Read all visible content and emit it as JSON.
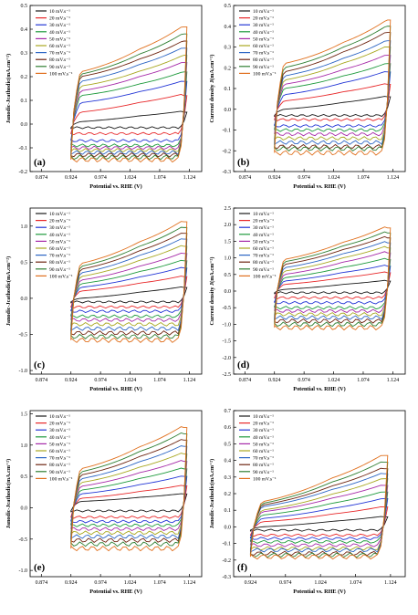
{
  "figure": {
    "legend_entries": [
      "10 mV.s⁻¹",
      "20 mV.s⁻¹",
      "30 mV.s⁻¹",
      "40 mV.s⁻¹",
      "50 mV.s⁻¹",
      "60 mV.s⁻¹",
      "70 mV.s⁻¹",
      "80 mV.s⁻¹",
      "90 mV.s⁻¹",
      "100 mV.s⁻¹"
    ],
    "colors": [
      "#1a1a1a",
      "#e8282a",
      "#2336d6",
      "#1e9a3c",
      "#a62aa8",
      "#a9a822",
      "#2c66c4",
      "#6e2410",
      "#2f7f32",
      "#e0701e"
    ]
  },
  "chart_data": [
    {
      "type": "line",
      "panel_label": "(a)",
      "xlabel": "Potential vs. RHE (V)",
      "ylabel": "Janodic-Jcathodic(mA.cm⁻²)",
      "x_ticks": [
        "0.874",
        "0.924",
        "0.974",
        "1.024",
        "1.074",
        "1.124"
      ],
      "y_ticks": [
        "-0.2",
        "-0.1",
        "0.0",
        "0.1",
        "0.2",
        "0.3",
        "0.4",
        "0.5"
      ],
      "xlim": [
        0.855,
        1.145
      ],
      "ylim": [
        -0.2,
        0.5
      ],
      "legend": "top-left",
      "x_range": [
        0.924,
        1.12
      ],
      "series": [
        {
          "name": "10 mV.s⁻¹",
          "values": {
            "lower": -0.015,
            "upper_start": 0.01,
            "upper_mid": 0.035,
            "upper_end": 0.05
          }
        },
        {
          "name": "20 mV.s⁻¹",
          "values": {
            "lower": -0.04,
            "upper_start": 0.05,
            "upper_mid": 0.09,
            "upper_end": 0.12
          }
        },
        {
          "name": "30 mV.s⁻¹",
          "values": {
            "lower": -0.07,
            "upper_start": 0.09,
            "upper_mid": 0.13,
            "upper_end": 0.18
          }
        },
        {
          "name": "40 mV.s⁻¹",
          "values": {
            "lower": -0.09,
            "upper_start": 0.12,
            "upper_mid": 0.16,
            "upper_end": 0.22
          }
        },
        {
          "name": "50 mV.s⁻¹",
          "values": {
            "lower": -0.1,
            "upper_start": 0.14,
            "upper_mid": 0.19,
            "upper_end": 0.26
          }
        },
        {
          "name": "60 mV.s⁻¹",
          "values": {
            "lower": -0.11,
            "upper_start": 0.16,
            "upper_mid": 0.21,
            "upper_end": 0.29
          }
        },
        {
          "name": "70 mV.s⁻¹",
          "values": {
            "lower": -0.12,
            "upper_start": 0.18,
            "upper_mid": 0.24,
            "upper_end": 0.32
          }
        },
        {
          "name": "80 mV.s⁻¹",
          "values": {
            "lower": -0.13,
            "upper_start": 0.2,
            "upper_mid": 0.26,
            "upper_end": 0.35
          }
        },
        {
          "name": "90 mV.s⁻¹",
          "values": {
            "lower": -0.14,
            "upper_start": 0.21,
            "upper_mid": 0.28,
            "upper_end": 0.38
          }
        },
        {
          "name": "100 mV.s⁻¹",
          "values": {
            "lower": -0.15,
            "upper_start": 0.22,
            "upper_mid": 0.3,
            "upper_end": 0.41
          }
        }
      ]
    },
    {
      "type": "line",
      "panel_label": "(b)",
      "xlabel": "Potential vs. RHE (V)",
      "ylabel": "Current density J(mA.cm⁻²)",
      "x_ticks": [
        "0.874",
        "0.924",
        "0.974",
        "1.024",
        "1.074",
        "1.124"
      ],
      "y_ticks": [
        "-0.3",
        "-0.2",
        "-0.1",
        "0.0",
        "0.1",
        "0.2",
        "0.3",
        "0.4",
        "0.5"
      ],
      "xlim": [
        0.855,
        1.145
      ],
      "ylim": [
        -0.3,
        0.5
      ],
      "legend": "top-left",
      "x_range": [
        0.924,
        1.12
      ],
      "series": [
        {
          "name": "10 mV.s⁻¹",
          "values": {
            "lower": -0.03,
            "upper_start": 0.0,
            "upper_mid": 0.03,
            "upper_end": 0.06
          }
        },
        {
          "name": "20 mV.s⁻¹",
          "values": {
            "lower": -0.05,
            "upper_start": 0.04,
            "upper_mid": 0.08,
            "upper_end": 0.12
          }
        },
        {
          "name": "30 mV.s⁻¹",
          "values": {
            "lower": -0.08,
            "upper_start": 0.07,
            "upper_mid": 0.12,
            "upper_end": 0.18
          }
        },
        {
          "name": "40 mV.s⁻¹",
          "values": {
            "lower": -0.1,
            "upper_start": 0.1,
            "upper_mid": 0.15,
            "upper_end": 0.22
          }
        },
        {
          "name": "50 mV.s⁻¹",
          "values": {
            "lower": -0.12,
            "upper_start": 0.12,
            "upper_mid": 0.18,
            "upper_end": 0.26
          }
        },
        {
          "name": "60 mV.s⁻¹",
          "values": {
            "lower": -0.14,
            "upper_start": 0.14,
            "upper_mid": 0.21,
            "upper_end": 0.3
          }
        },
        {
          "name": "70 mV.s⁻¹",
          "values": {
            "lower": -0.16,
            "upper_start": 0.16,
            "upper_mid": 0.23,
            "upper_end": 0.33
          }
        },
        {
          "name": "80 mV.s⁻¹",
          "values": {
            "lower": -0.18,
            "upper_start": 0.18,
            "upper_mid": 0.26,
            "upper_end": 0.37
          }
        },
        {
          "name": "90 mV.s⁻¹",
          "values": {
            "lower": -0.19,
            "upper_start": 0.2,
            "upper_mid": 0.28,
            "upper_end": 0.4
          }
        },
        {
          "name": "100 mV.s⁻¹",
          "values": {
            "lower": -0.21,
            "upper_start": 0.22,
            "upper_mid": 0.3,
            "upper_end": 0.43
          }
        }
      ]
    },
    {
      "type": "line",
      "panel_label": "(c)",
      "xlabel": "Potential vs. RHE (V)",
      "ylabel": "Janodic-Jcathodic(mA.cm⁻²)",
      "x_ticks": [
        "0.874",
        "0.924",
        "0.974",
        "1.024",
        "1.074",
        "1.124"
      ],
      "y_ticks": [
        "-1.0",
        "-0.5",
        "0.0",
        "0.5",
        "1.0"
      ],
      "xlim": [
        0.855,
        1.145
      ],
      "ylim": [
        -1.05,
        1.25
      ],
      "legend": "top-left",
      "x_range": [
        0.924,
        1.12
      ],
      "series": [
        {
          "name": "10 mV.s⁻¹",
          "values": {
            "lower": -0.05,
            "upper_start": 0.0,
            "upper_mid": 0.08,
            "upper_end": 0.15
          }
        },
        {
          "name": "20 mV.s⁻¹",
          "values": {
            "lower": -0.12,
            "upper_start": 0.1,
            "upper_mid": 0.2,
            "upper_end": 0.3
          }
        },
        {
          "name": "30 mV.s⁻¹",
          "values": {
            "lower": -0.18,
            "upper_start": 0.15,
            "upper_mid": 0.28,
            "upper_end": 0.42
          }
        },
        {
          "name": "40 mV.s⁻¹",
          "values": {
            "lower": -0.25,
            "upper_start": 0.2,
            "upper_mid": 0.35,
            "upper_end": 0.52
          }
        },
        {
          "name": "50 mV.s⁻¹",
          "values": {
            "lower": -0.3,
            "upper_start": 0.25,
            "upper_mid": 0.42,
            "upper_end": 0.62
          }
        },
        {
          "name": "60 mV.s⁻¹",
          "values": {
            "lower": -0.36,
            "upper_start": 0.3,
            "upper_mid": 0.5,
            "upper_end": 0.72
          }
        },
        {
          "name": "70 mV.s⁻¹",
          "values": {
            "lower": -0.42,
            "upper_start": 0.35,
            "upper_mid": 0.56,
            "upper_end": 0.82
          }
        },
        {
          "name": "80 mV.s⁻¹",
          "values": {
            "lower": -0.48,
            "upper_start": 0.4,
            "upper_mid": 0.62,
            "upper_end": 0.9
          }
        },
        {
          "name": "90 mV.s⁻¹",
          "values": {
            "lower": -0.53,
            "upper_start": 0.44,
            "upper_mid": 0.68,
            "upper_end": 0.98
          }
        },
        {
          "name": "100 mV.s⁻¹",
          "values": {
            "lower": -0.58,
            "upper_start": 0.48,
            "upper_mid": 0.74,
            "upper_end": 1.06
          }
        }
      ]
    },
    {
      "type": "line",
      "panel_label": "(d)",
      "xlabel": "Potential vs. RHE (V)",
      "ylabel": "Current density J(mA.cm⁻²)",
      "x_ticks": [
        "0.874",
        "0.924",
        "0.974",
        "1.024",
        "1.074",
        "1.124"
      ],
      "y_ticks": [
        "-2.5",
        "-2.0",
        "-1.5",
        "-1.0",
        "-0.5",
        "0.0",
        "0.5",
        "1.0",
        "1.5",
        "2.0",
        "2.5"
      ],
      "xlim": [
        0.855,
        1.145
      ],
      "ylim": [
        -2.5,
        2.5
      ],
      "legend": "top-left",
      "x_range": [
        0.924,
        1.12
      ],
      "series": [
        {
          "name": "10 mV.s⁻¹",
          "values": {
            "lower": -0.05,
            "upper_start": 0.05,
            "upper_mid": 0.2,
            "upper_end": 0.3
          }
        },
        {
          "name": "20 mV.s⁻¹",
          "values": {
            "lower": -0.2,
            "upper_start": 0.2,
            "upper_mid": 0.4,
            "upper_end": 0.55
          }
        },
        {
          "name": "30 mV.s⁻¹",
          "values": {
            "lower": -0.35,
            "upper_start": 0.3,
            "upper_mid": 0.55,
            "upper_end": 0.75
          }
        },
        {
          "name": "40 mV.s⁻¹",
          "values": {
            "lower": -0.5,
            "upper_start": 0.4,
            "upper_mid": 0.7,
            "upper_end": 0.95
          }
        },
        {
          "name": "50 mV.s⁻¹",
          "values": {
            "lower": -0.6,
            "upper_start": 0.5,
            "upper_mid": 0.85,
            "upper_end": 1.15
          }
        },
        {
          "name": "60 mV.s⁻¹",
          "values": {
            "lower": -0.7,
            "upper_start": 0.6,
            "upper_mid": 0.98,
            "upper_end": 1.3
          }
        },
        {
          "name": "70 mV.s⁻¹",
          "values": {
            "lower": -0.8,
            "upper_start": 0.7,
            "upper_mid": 1.1,
            "upper_end": 1.45
          }
        },
        {
          "name": "80 mV.s⁻¹",
          "values": {
            "lower": -0.9,
            "upper_start": 0.8,
            "upper_mid": 1.22,
            "upper_end": 1.6
          }
        },
        {
          "name": "90 mV.s⁻¹",
          "values": {
            "lower": -1.0,
            "upper_start": 0.88,
            "upper_mid": 1.32,
            "upper_end": 1.75
          }
        },
        {
          "name": "100 mV.s⁻¹",
          "values": {
            "lower": -1.1,
            "upper_start": 0.95,
            "upper_mid": 1.42,
            "upper_end": 1.9
          }
        }
      ]
    },
    {
      "type": "line",
      "panel_label": "(e)",
      "xlabel": "Potential vs. RHE (V)",
      "ylabel": "Janodic-Jcathodic(mA.cm⁻²)",
      "x_ticks": [
        "0.874",
        "0.924",
        "0.974",
        "1.024",
        "1.074",
        "1.124"
      ],
      "y_ticks": [
        "-1.0",
        "-0.5",
        "0.0",
        "0.5",
        "1.0",
        "1.5"
      ],
      "xlim": [
        0.855,
        1.145
      ],
      "ylim": [
        -1.1,
        1.55
      ],
      "legend": "top-left",
      "x_range": [
        0.924,
        1.12
      ],
      "series": [
        {
          "name": "10 mV.s⁻¹",
          "values": {
            "lower": -0.05,
            "upper_start": 0.1,
            "upper_mid": 0.16,
            "upper_end": 0.22
          }
        },
        {
          "name": "20 mV.s⁻¹",
          "values": {
            "lower": -0.15,
            "upper_start": 0.15,
            "upper_mid": 0.25,
            "upper_end": 0.35
          }
        },
        {
          "name": "30 mV.s⁻¹",
          "values": {
            "lower": -0.22,
            "upper_start": 0.22,
            "upper_mid": 0.35,
            "upper_end": 0.5
          }
        },
        {
          "name": "40 mV.s⁻¹",
          "values": {
            "lower": -0.28,
            "upper_start": 0.28,
            "upper_mid": 0.45,
            "upper_end": 0.62
          }
        },
        {
          "name": "50 mV.s⁻¹",
          "values": {
            "lower": -0.34,
            "upper_start": 0.34,
            "upper_mid": 0.54,
            "upper_end": 0.74
          }
        },
        {
          "name": "60 mV.s⁻¹",
          "values": {
            "lower": -0.4,
            "upper_start": 0.4,
            "upper_mid": 0.62,
            "upper_end": 0.86
          }
        },
        {
          "name": "70 mV.s⁻¹",
          "values": {
            "lower": -0.46,
            "upper_start": 0.46,
            "upper_mid": 0.7,
            "upper_end": 0.98
          }
        },
        {
          "name": "80 mV.s⁻¹",
          "values": {
            "lower": -0.52,
            "upper_start": 0.52,
            "upper_mid": 0.78,
            "upper_end": 1.08
          }
        },
        {
          "name": "90 mV.s⁻¹",
          "values": {
            "lower": -0.58,
            "upper_start": 0.57,
            "upper_mid": 0.86,
            "upper_end": 1.18
          }
        },
        {
          "name": "100 mV.s⁻¹",
          "values": {
            "lower": -0.65,
            "upper_start": 0.62,
            "upper_mid": 0.93,
            "upper_end": 1.28
          }
        }
      ]
    },
    {
      "type": "line",
      "panel_label": "(f)",
      "xlabel": "Potential vs. RHE (V)",
      "ylabel": "Janodic-Jcathodic(mA.cm⁻²)",
      "x_ticks": [
        "0.924",
        "0.974",
        "1.024",
        "1.074",
        "1.124"
      ],
      "y_ticks": [
        "-0.3",
        "-0.2",
        "-0.1",
        "0.0",
        "0.1",
        "0.2",
        "0.3",
        "0.4",
        "0.5",
        "0.6",
        "0.7"
      ],
      "xlim": [
        0.9,
        1.145
      ],
      "ylim": [
        -0.3,
        0.7
      ],
      "legend": "top-left",
      "x_range": [
        0.924,
        1.12
      ],
      "series": [
        {
          "name": "10 mV.s⁻¹",
          "values": {
            "lower": -0.02,
            "upper_start": 0.0,
            "upper_mid": 0.03,
            "upper_end": 0.06
          }
        },
        {
          "name": "20 mV.s⁻¹",
          "values": {
            "lower": -0.05,
            "upper_start": 0.03,
            "upper_mid": 0.07,
            "upper_end": 0.12
          }
        },
        {
          "name": "30 mV.s⁻¹",
          "values": {
            "lower": -0.07,
            "upper_start": 0.05,
            "upper_mid": 0.1,
            "upper_end": 0.17
          }
        },
        {
          "name": "40 mV.s⁻¹",
          "values": {
            "lower": -0.09,
            "upper_start": 0.07,
            "upper_mid": 0.13,
            "upper_end": 0.21
          }
        },
        {
          "name": "50 mV.s⁻¹",
          "values": {
            "lower": -0.11,
            "upper_start": 0.09,
            "upper_mid": 0.16,
            "upper_end": 0.25
          }
        },
        {
          "name": "60 mV.s⁻¹",
          "values": {
            "lower": -0.13,
            "upper_start": 0.1,
            "upper_mid": 0.18,
            "upper_end": 0.29
          }
        },
        {
          "name": "70 mV.s⁻¹",
          "values": {
            "lower": -0.14,
            "upper_start": 0.12,
            "upper_mid": 0.21,
            "upper_end": 0.32
          }
        },
        {
          "name": "80 mV.s⁻¹",
          "values": {
            "lower": -0.16,
            "upper_start": 0.13,
            "upper_mid": 0.23,
            "upper_end": 0.35
          }
        },
        {
          "name": "90 mV.s⁻¹",
          "values": {
            "lower": -0.17,
            "upper_start": 0.14,
            "upper_mid": 0.25,
            "upper_end": 0.39
          }
        },
        {
          "name": "100 mV.s⁻¹",
          "values": {
            "lower": -0.18,
            "upper_start": 0.15,
            "upper_mid": 0.27,
            "upper_end": 0.43
          }
        }
      ]
    }
  ]
}
